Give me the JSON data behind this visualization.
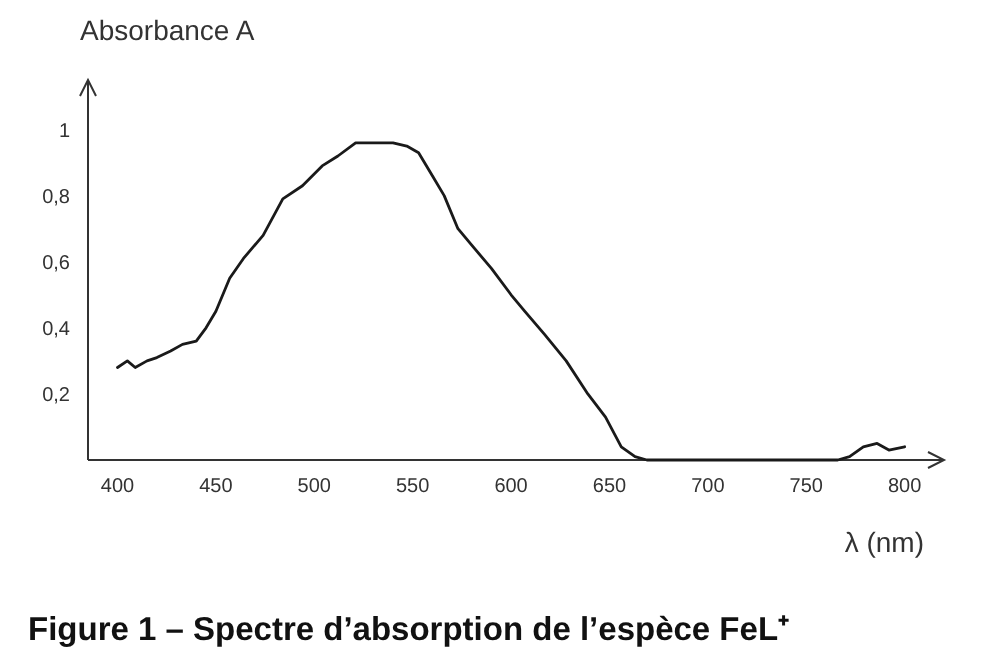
{
  "chart_data": {
    "type": "line",
    "title": "Figure 1 – Spectre d’absorption de l’espèce FeL⁺",
    "xlabel": "λ (nm)",
    "ylabel": "Absorbance A",
    "x": [
      400,
      405,
      409,
      415,
      420,
      427,
      433,
      440,
      445,
      450,
      457,
      464,
      474,
      484,
      494,
      504,
      512,
      521,
      530,
      540,
      547,
      553,
      560,
      566,
      573,
      580,
      590,
      600,
      607,
      617,
      628,
      639,
      648,
      656,
      663,
      669,
      675,
      700,
      730,
      766,
      772,
      779,
      786,
      792,
      800
    ],
    "series": [
      {
        "color": "#1a1a1a",
        "values": [
          0.28,
          0.3,
          0.28,
          0.3,
          0.31,
          0.33,
          0.35,
          0.36,
          0.4,
          0.45,
          0.55,
          0.61,
          0.68,
          0.79,
          0.83,
          0.89,
          0.92,
          0.96,
          0.96,
          0.96,
          0.95,
          0.93,
          0.86,
          0.8,
          0.7,
          0.65,
          0.58,
          0.5,
          0.45,
          0.38,
          0.3,
          0.2,
          0.13,
          0.04,
          0.01,
          0,
          0,
          0,
          0,
          0,
          0.01,
          0.04,
          0.05,
          0.03,
          0.04
        ]
      }
    ],
    "xlim": [
      385,
      820
    ],
    "ylim": [
      0,
      1.15
    ],
    "xticks": [
      400,
      450,
      500,
      550,
      600,
      650,
      700,
      750,
      800
    ],
    "yticks": [
      {
        "value": 0.2,
        "label": "0,2"
      },
      {
        "value": 0.4,
        "label": "0,4"
      },
      {
        "value": 0.6,
        "label": "0,6"
      },
      {
        "value": 0.8,
        "label": "0,8"
      },
      {
        "value": 1,
        "label": "1"
      }
    ],
    "grid": false,
    "marker": "none",
    "line_style": "solid"
  }
}
